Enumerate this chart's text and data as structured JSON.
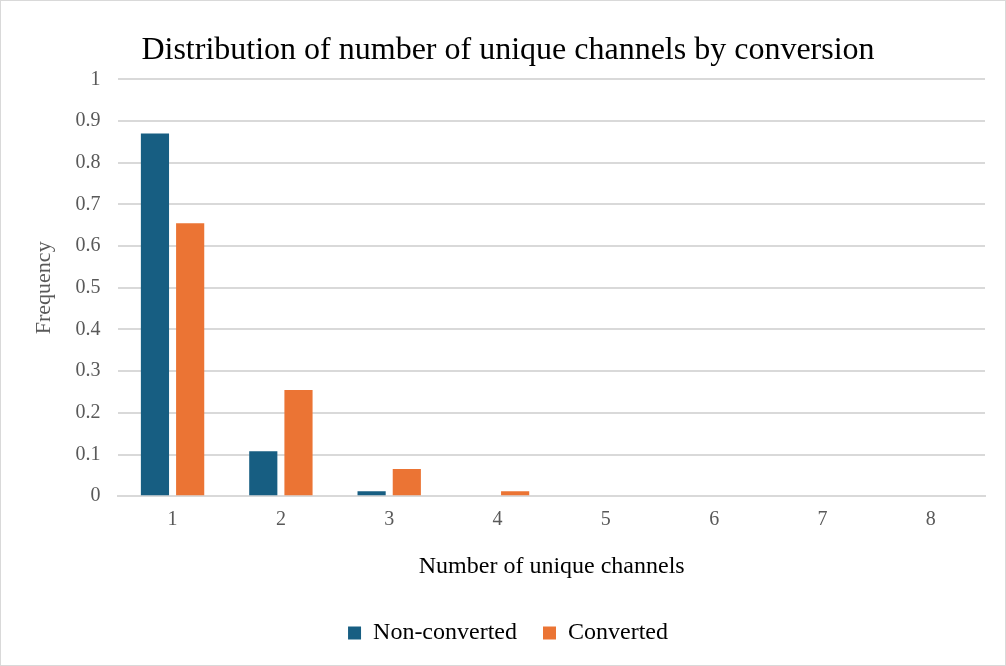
{
  "chart_data": {
    "type": "bar",
    "title": "Distribution of number of unique channels by conversion",
    "xlabel": "Number of unique channels",
    "ylabel": "Frequency",
    "categories": [
      "1",
      "2",
      "3",
      "4",
      "5",
      "6",
      "7",
      "8"
    ],
    "series": [
      {
        "name": "Non-converted",
        "color": "#175e82",
        "values": [
          0.87,
          0.108,
          0.012,
          0,
          0,
          0,
          0,
          0
        ]
      },
      {
        "name": "Converted",
        "color": "#eb7434",
        "values": [
          0.655,
          0.255,
          0.065,
          0.012,
          0,
          0,
          0,
          0
        ]
      }
    ],
    "ylim": [
      0,
      1
    ],
    "yticks": [
      0,
      0.1,
      0.2,
      0.3,
      0.4,
      0.5,
      0.6,
      0.7,
      0.8,
      0.9,
      1
    ],
    "grid": "y",
    "legend": "bottom"
  }
}
